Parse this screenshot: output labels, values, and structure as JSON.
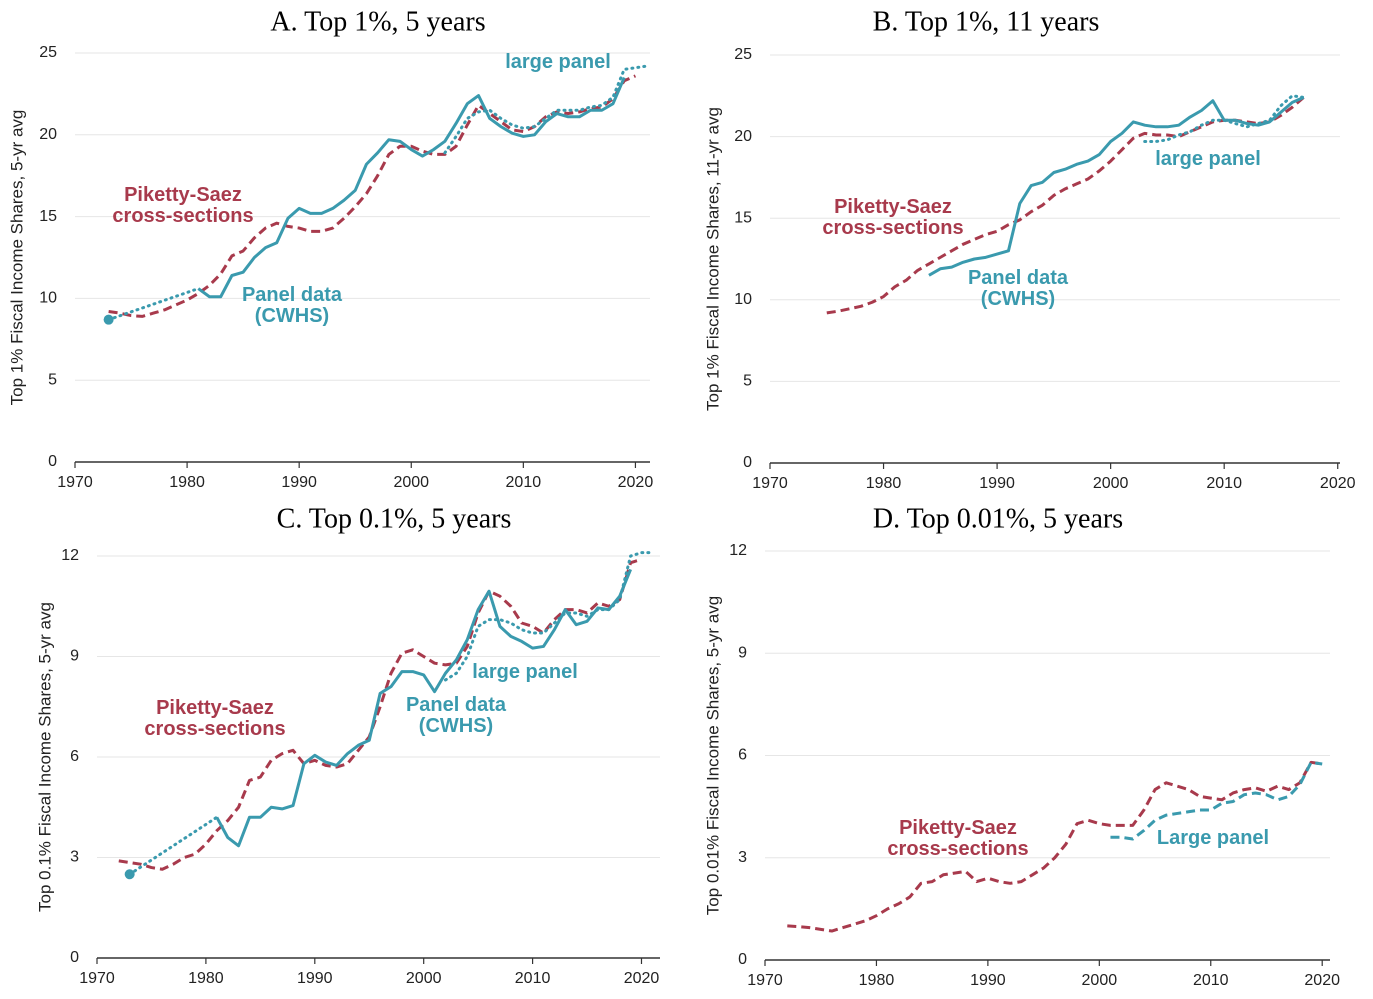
{
  "chart_data": [
    {
      "type": "line",
      "title": "A. Top 1%, 5 years",
      "y_label": "Top 1% Fiscal Income Shares, 5-yr avg",
      "xlim": [
        1970,
        2021.3
      ],
      "xticks": [
        1970,
        1980,
        1990,
        2000,
        2010,
        2020
      ],
      "ylim": [
        0,
        25
      ],
      "yticks": [
        0,
        5,
        10,
        15,
        20,
        25
      ],
      "grid": true,
      "series": [
        {
          "name": [
            "Piketty-Saez",
            "cross-sections"
          ],
          "color": "#a83a4c",
          "dash": "dashed",
          "x": [
            1973,
            1974,
            1975,
            1976,
            1977,
            1978,
            1979,
            1980,
            1981,
            1982,
            1983,
            1984,
            1985,
            1986,
            1987,
            1988,
            1989,
            1990,
            1991,
            1992,
            1993,
            1994,
            1995,
            1996,
            1997,
            1998,
            1999,
            2000,
            2001,
            2002,
            2003,
            2004,
            2005,
            2006,
            2007,
            2008,
            2009,
            2010,
            2011,
            2012,
            2013,
            2014,
            2015,
            2016,
            2017,
            2018,
            2019,
            2020
          ],
          "values": [
            9.2,
            9.1,
            8.95,
            8.9,
            9.1,
            9.3,
            9.6,
            9.9,
            10.3,
            10.8,
            11.5,
            12.6,
            12.9,
            13.7,
            14.3,
            14.6,
            14.4,
            14.3,
            14.1,
            14.1,
            14.3,
            14.9,
            15.6,
            16.4,
            17.5,
            18.8,
            19.3,
            19.3,
            19.0,
            18.8,
            18.8,
            19.3,
            20.6,
            21.8,
            21.3,
            20.8,
            20.3,
            20.2,
            20.5,
            21.1,
            21.4,
            21.3,
            21.4,
            21.6,
            21.7,
            22.2,
            23.3,
            23.6
          ]
        },
        {
          "name": [
            "Panel data",
            "(CWHS)"
          ],
          "color": "#3a9aae",
          "dash": "solid",
          "x": [
            1981,
            1982,
            1983,
            1984,
            1985,
            1986,
            1987,
            1988,
            1989,
            1990,
            1991,
            1992,
            1993,
            1994,
            1995,
            1996,
            1997,
            1998,
            1999,
            2000,
            2001,
            2002,
            2003,
            2004,
            2005,
            2006,
            2007,
            2008,
            2009,
            2010,
            2011,
            2012,
            2013,
            2014,
            2015,
            2016,
            2017,
            2018,
            2019
          ],
          "values": [
            10.6,
            10.1,
            10.1,
            11.4,
            11.6,
            12.5,
            13.1,
            13.4,
            14.9,
            15.5,
            15.2,
            15.2,
            15.5,
            16.0,
            16.6,
            18.2,
            18.9,
            19.7,
            19.6,
            19.1,
            18.7,
            19.1,
            19.6,
            20.7,
            21.9,
            22.4,
            21.0,
            20.5,
            20.1,
            19.9,
            20.0,
            20.8,
            21.3,
            21.1,
            21.1,
            21.5,
            21.5,
            21.9,
            23.5
          ]
        },
        {
          "name": [
            "large panel"
          ],
          "color": "#3a9aae",
          "dash": "dotted",
          "x": [
            2003,
            2004,
            2005,
            2006,
            2007,
            2008,
            2009,
            2010,
            2011,
            2012,
            2013,
            2014,
            2015,
            2016,
            2017,
            2018,
            2019,
            2020,
            2021
          ],
          "values": [
            18.9,
            19.9,
            21.0,
            21.4,
            21.5,
            21.0,
            20.6,
            20.4,
            20.5,
            21.0,
            21.5,
            21.5,
            21.5,
            21.7,
            21.8,
            22.3,
            24.0,
            24.1,
            24.2
          ]
        },
        {
          "color": "#3a9aae",
          "dash": "dotted",
          "marker": "start",
          "x": [
            1973,
            1981
          ],
          "values": [
            8.7,
            10.6
          ]
        }
      ]
    },
    {
      "type": "line",
      "title": "B. Top 1%, 11 years",
      "y_label": "Top 1% Fiscal Income Shares, 11-yr avg",
      "xlim": [
        1970,
        2020.2
      ],
      "xticks": [
        1970,
        1980,
        1990,
        2000,
        2010,
        2020
      ],
      "ylim": [
        0,
        25
      ],
      "yticks": [
        0,
        5,
        10,
        15,
        20,
        25
      ],
      "grid": true,
      "series": [
        {
          "name": [
            "Piketty-Saez",
            "cross-sections"
          ],
          "color": "#a83a4c",
          "dash": "dashed",
          "x": [
            1975,
            1976,
            1977,
            1978,
            1979,
            1980,
            1981,
            1982,
            1983,
            1984,
            1985,
            1986,
            1987,
            1988,
            1989,
            1990,
            1991,
            1992,
            1993,
            1994,
            1995,
            1996,
            1997,
            1998,
            1999,
            2000,
            2001,
            2002,
            2003,
            2004,
            2005,
            2006,
            2007,
            2008,
            2009,
            2010,
            2011,
            2012,
            2013,
            2014,
            2015,
            2016,
            2017
          ],
          "values": [
            9.2,
            9.3,
            9.45,
            9.6,
            9.85,
            10.2,
            10.8,
            11.2,
            11.8,
            12.2,
            12.6,
            13.0,
            13.4,
            13.7,
            14.0,
            14.2,
            14.6,
            14.9,
            15.4,
            15.8,
            16.4,
            16.8,
            17.1,
            17.4,
            17.9,
            18.5,
            19.2,
            19.9,
            20.2,
            20.1,
            20.1,
            20.0,
            20.3,
            20.6,
            20.9,
            21.0,
            21.0,
            20.9,
            20.8,
            20.9,
            21.3,
            21.8,
            22.4
          ]
        },
        {
          "name": [
            "Panel data",
            "(CWHS)"
          ],
          "color": "#3a9aae",
          "dash": "solid",
          "x": [
            1984,
            1985,
            1986,
            1987,
            1988,
            1989,
            1990,
            1991,
            1992,
            1993,
            1994,
            1995,
            1996,
            1997,
            1998,
            1999,
            2000,
            2001,
            2002,
            2003,
            2004,
            2005,
            2006,
            2007,
            2008,
            2009,
            2010,
            2011,
            2012,
            2013,
            2014,
            2015,
            2016,
            2017
          ],
          "values": [
            11.5,
            11.9,
            12.0,
            12.3,
            12.5,
            12.6,
            12.8,
            13.0,
            15.9,
            17.0,
            17.2,
            17.8,
            18.0,
            18.3,
            18.5,
            18.9,
            19.7,
            20.2,
            20.9,
            20.7,
            20.6,
            20.6,
            20.7,
            21.2,
            21.6,
            22.2,
            21.0,
            21.0,
            20.8,
            20.7,
            20.9,
            21.5,
            22.1,
            22.4
          ]
        },
        {
          "name": [
            "large panel"
          ],
          "color": "#3a9aae",
          "dash": "dotted",
          "x": [
            2003,
            2004,
            2005,
            2006,
            2007,
            2008,
            2009,
            2010,
            2011,
            2012,
            2013,
            2014,
            2015,
            2016,
            2017
          ],
          "values": [
            19.7,
            19.7,
            19.8,
            20.1,
            20.3,
            20.7,
            21.0,
            21.0,
            20.8,
            20.6,
            20.8,
            21.0,
            21.9,
            22.5,
            22.4
          ]
        }
      ]
    },
    {
      "type": "line",
      "title": "C. Top 0.1%, 5 years",
      "y_label": "Top 0.1% Fiscal Income Shares, 5-yr avg",
      "xlim": [
        1970,
        2021.7
      ],
      "xticks": [
        1970,
        1980,
        1990,
        2000,
        2010,
        2020
      ],
      "ylim": [
        0,
        12
      ],
      "yticks": [
        0,
        3,
        6,
        9,
        12
      ],
      "grid": true,
      "series": [
        {
          "name": [
            "Piketty-Saez",
            "cross-sections"
          ],
          "color": "#a83a4c",
          "dash": "dashed",
          "x": [
            1972,
            1973,
            1974,
            1975,
            1976,
            1977,
            1978,
            1979,
            1980,
            1981,
            1982,
            1983,
            1984,
            1985,
            1986,
            1987,
            1988,
            1989,
            1990,
            1991,
            1992,
            1993,
            1994,
            1995,
            1996,
            1997,
            1998,
            1999,
            2000,
            2001,
            2002,
            2003,
            2004,
            2005,
            2006,
            2007,
            2008,
            2009,
            2010,
            2011,
            2012,
            2013,
            2014,
            2015,
            2016,
            2017,
            2018,
            2019,
            2020
          ],
          "values": [
            2.9,
            2.85,
            2.8,
            2.7,
            2.65,
            2.8,
            3.0,
            3.1,
            3.4,
            3.8,
            4.1,
            4.5,
            5.3,
            5.4,
            5.9,
            6.1,
            6.2,
            5.8,
            5.9,
            5.75,
            5.7,
            5.8,
            6.2,
            6.6,
            7.5,
            8.5,
            9.1,
            9.2,
            9.0,
            8.8,
            8.75,
            8.8,
            9.3,
            10.3,
            10.95,
            10.8,
            10.5,
            10.0,
            9.9,
            9.7,
            10.1,
            10.4,
            10.4,
            10.3,
            10.6,
            10.5,
            10.7,
            11.8,
            11.9
          ]
        },
        {
          "name": [
            "Panel data",
            "(CWHS)"
          ],
          "color": "#3a9aae",
          "dash": "solid",
          "x": [
            1981,
            1982,
            1983,
            1984,
            1985,
            1986,
            1987,
            1988,
            1989,
            1990,
            1991,
            1992,
            1993,
            1994,
            1995,
            1996,
            1997,
            1998,
            1999,
            2000,
            2001,
            2002,
            2003,
            2004,
            2005,
            2006,
            2007,
            2008,
            2009,
            2010,
            2011,
            2012,
            2013,
            2014,
            2015,
            2016,
            2017,
            2018,
            2019
          ],
          "values": [
            4.2,
            3.6,
            3.35,
            4.2,
            4.2,
            4.5,
            4.45,
            4.55,
            5.8,
            6.05,
            5.85,
            5.75,
            6.1,
            6.35,
            6.5,
            7.9,
            8.1,
            8.55,
            8.55,
            8.45,
            7.95,
            8.5,
            8.9,
            9.5,
            10.4,
            10.95,
            9.9,
            9.6,
            9.45,
            9.25,
            9.3,
            9.8,
            10.4,
            9.95,
            10.05,
            10.45,
            10.4,
            10.8,
            11.6
          ]
        },
        {
          "name": [
            "large panel"
          ],
          "color": "#3a9aae",
          "dash": "dotted",
          "x": [
            2002,
            2003,
            2004,
            2005,
            2006,
            2007,
            2008,
            2009,
            2010,
            2011,
            2012,
            2013,
            2014,
            2015,
            2016,
            2017,
            2018,
            2019,
            2020,
            2021
          ],
          "values": [
            8.3,
            8.5,
            9.0,
            9.9,
            10.1,
            10.1,
            10.0,
            9.8,
            9.7,
            9.7,
            10.0,
            10.3,
            10.3,
            10.2,
            10.4,
            10.4,
            10.7,
            12.0,
            12.1,
            12.1
          ]
        },
        {
          "color": "#3a9aae",
          "dash": "dotted",
          "marker": "start",
          "x": [
            1973,
            1981
          ],
          "values": [
            2.5,
            4.2
          ]
        }
      ]
    },
    {
      "type": "line",
      "title": "D. Top 0.01%, 5 years",
      "y_label": "Top 0.01% Fiscal Income Shares, 5-yr avg",
      "xlim": [
        1970,
        2020.7
      ],
      "xticks": [
        1970,
        1980,
        1990,
        2000,
        2010,
        2020
      ],
      "ylim": [
        0,
        12
      ],
      "yticks": [
        0,
        3,
        6,
        9,
        12
      ],
      "grid": true,
      "series": [
        {
          "name": [
            "Piketty-Saez",
            "cross-sections"
          ],
          "color": "#a83a4c",
          "dash": "dashed",
          "x": [
            1972,
            1973,
            1974,
            1975,
            1976,
            1977,
            1978,
            1979,
            1980,
            1981,
            1982,
            1983,
            1984,
            1985,
            1986,
            1987,
            1988,
            1989,
            1990,
            1991,
            1992,
            1993,
            1994,
            1995,
            1996,
            1997,
            1998,
            1999,
            2000,
            2001,
            2002,
            2003,
            2004,
            2005,
            2006,
            2007,
            2008,
            2009,
            2010,
            2011,
            2012,
            2013,
            2014,
            2015,
            2016,
            2017,
            2018,
            2019,
            2020
          ],
          "values": [
            1.0,
            0.98,
            0.95,
            0.9,
            0.85,
            0.95,
            1.05,
            1.15,
            1.3,
            1.5,
            1.65,
            1.85,
            2.25,
            2.3,
            2.5,
            2.55,
            2.6,
            2.3,
            2.4,
            2.3,
            2.25,
            2.3,
            2.5,
            2.7,
            3.0,
            3.4,
            4.0,
            4.1,
            4.0,
            3.95,
            3.95,
            3.95,
            4.4,
            5.0,
            5.2,
            5.1,
            5.0,
            4.8,
            4.75,
            4.7,
            4.9,
            5.0,
            5.05,
            4.95,
            5.1,
            5.0,
            5.2,
            5.8,
            5.75
          ]
        },
        {
          "name": [
            "Large panel"
          ],
          "color": "#3a9aae",
          "dash": "dashed",
          "x": [
            2001,
            2002,
            2003,
            2004,
            2005,
            2006,
            2007,
            2008,
            2009,
            2010,
            2011,
            2012,
            2013,
            2014,
            2015,
            2016,
            2017,
            2018,
            2019,
            2020
          ],
          "values": [
            3.6,
            3.6,
            3.55,
            3.8,
            4.1,
            4.25,
            4.3,
            4.35,
            4.4,
            4.4,
            4.6,
            4.65,
            4.85,
            4.9,
            4.85,
            4.7,
            4.8,
            5.15,
            5.8,
            5.75
          ]
        }
      ]
    }
  ]
}
